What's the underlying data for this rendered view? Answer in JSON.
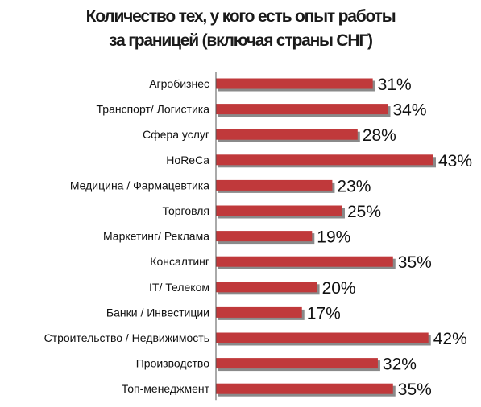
{
  "title_lines": [
    "Количество тех, у кого есть опыт работы",
    "за границей (включая страны СНГ)"
  ],
  "colors": {
    "bar": "#c0393b",
    "bar_shadow": "#8a8a8a",
    "text": "#111111"
  },
  "chart_data": {
    "type": "bar",
    "orientation": "horizontal",
    "title": "Количество тех, у кого есть опыт работы за границей (включая страны СНГ)",
    "categories": [
      "Агробизнес",
      "Транспорт/ Логистика",
      "Сфера услуг",
      "HoReCa",
      "Медицина / Фармацевтика",
      "Торговля",
      "Маркетинг/ Реклама",
      "Консалтинг",
      "IT/ Телеком",
      "Банки / Инвестиции",
      "Строительство / Недвижимость",
      "Производство",
      "Топ-менеджмент"
    ],
    "values": [
      31,
      34,
      28,
      43,
      23,
      25,
      19,
      35,
      20,
      17,
      42,
      32,
      35
    ],
    "value_labels": [
      "31%",
      "34%",
      "28%",
      "43%",
      "23%",
      "25%",
      "19%",
      "35%",
      "20%",
      "17%",
      "42%",
      "32%",
      "35%"
    ],
    "unit": "%",
    "xlim": [
      0,
      45
    ],
    "grid": false,
    "legend": "none"
  }
}
